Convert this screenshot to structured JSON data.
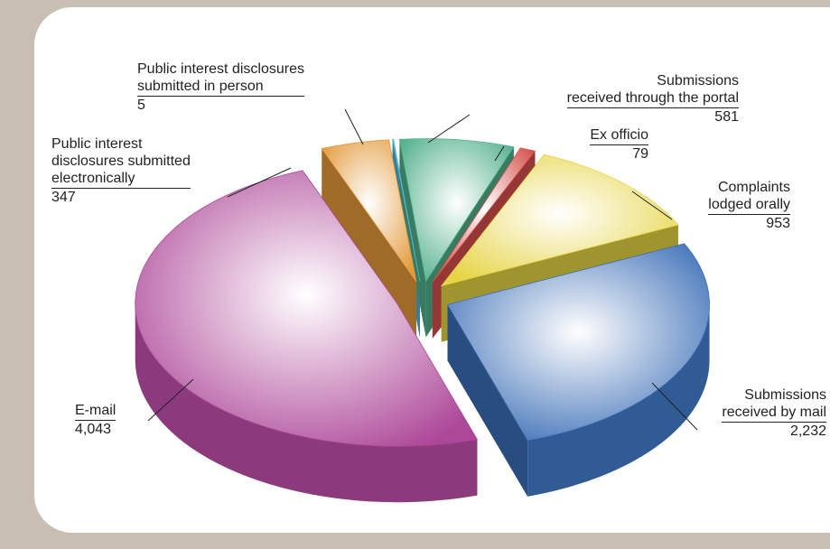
{
  "chart_data": {
    "type": "pie",
    "categories": [
      "Public interest disclosures\nsubmitted in person",
      "Submissions\nreceived through the portal",
      "Ex officio",
      "Complaints\nlodged orally",
      "Submissions\nreceived by mail",
      "E-mail",
      "Public interest\ndisclosures submitted\nelectronically"
    ],
    "values": [
      5,
      581,
      79,
      953,
      2232,
      4043,
      347
    ],
    "value_labels": [
      "5",
      "581",
      "79",
      "953",
      "2,232",
      "4,043",
      "347"
    ],
    "colors": [
      "#4fb3d6",
      "#52b08c",
      "#d4504c",
      "#e6d444",
      "#3c6fb6",
      "#ad4798",
      "#e39a3c"
    ]
  }
}
